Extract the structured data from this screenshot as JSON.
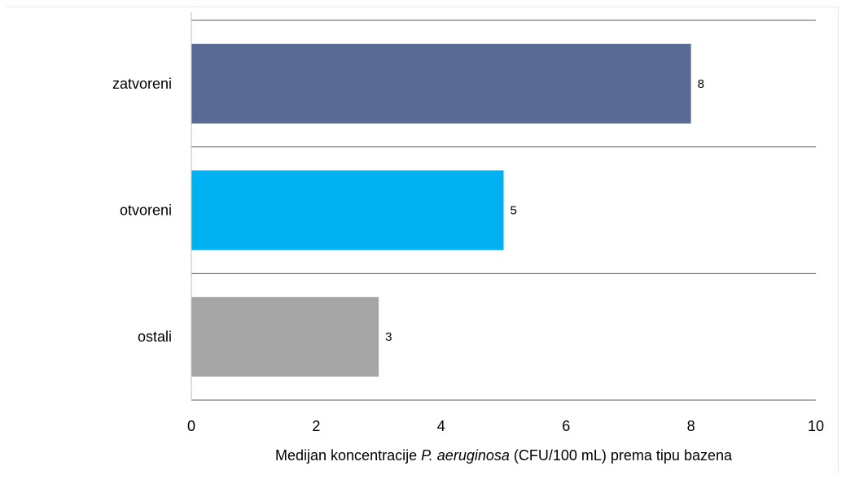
{
  "chart_data": {
    "type": "bar",
    "orientation": "horizontal",
    "categories": [
      "zatvoreni",
      "otvoreni",
      "ostali"
    ],
    "values": [
      8,
      5,
      3
    ],
    "colors": [
      "#596b95",
      "#00b0f0",
      "#a6a6a6"
    ],
    "xlim": [
      0,
      10
    ],
    "x_ticks": [
      "0",
      "2",
      "4",
      "6",
      "8",
      "10"
    ],
    "xlabel_parts": [
      {
        "text": "Medijan koncentracije ",
        "italic": false
      },
      {
        "text": "P. aeruginosa",
        "italic": true
      },
      {
        "text": " (CFU/100 mL) prema tipu bazena",
        "italic": false
      }
    ],
    "data_labels": [
      "8",
      "5",
      "3"
    ],
    "grid": "category separators",
    "legend": "none"
  }
}
